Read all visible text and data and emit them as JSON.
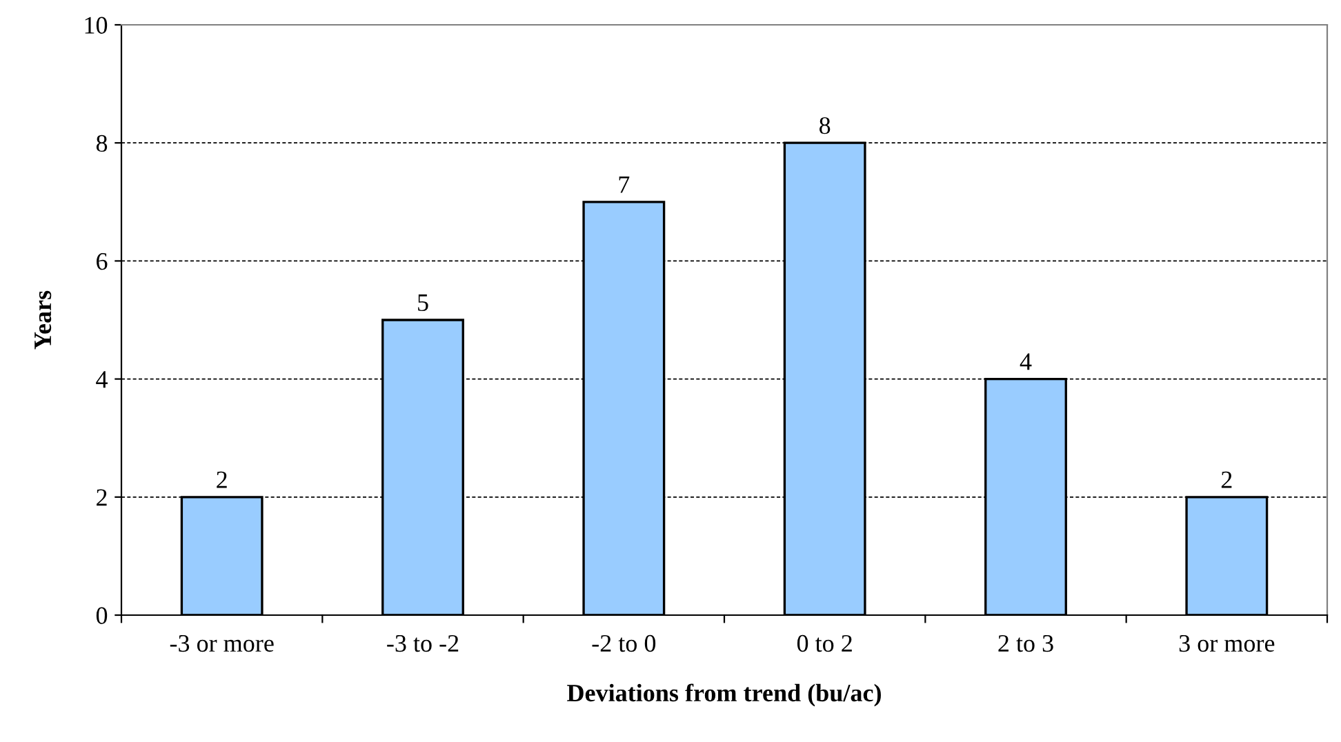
{
  "chart_data": {
    "type": "bar",
    "xlabel": "Deviations from trend (bu/ac)",
    "ylabel": "Years",
    "categories": [
      "-3 or more",
      "-3 to -2",
      "-2 to 0",
      "0 to 2",
      "2 to 3",
      "3 or more"
    ],
    "values": [
      2,
      5,
      7,
      8,
      4,
      2
    ],
    "color": "#99ccff",
    "ylim": [
      0,
      10
    ],
    "yticks": [
      0,
      2,
      4,
      6,
      8,
      10
    ],
    "grid": "y",
    "data_labels": true
  }
}
